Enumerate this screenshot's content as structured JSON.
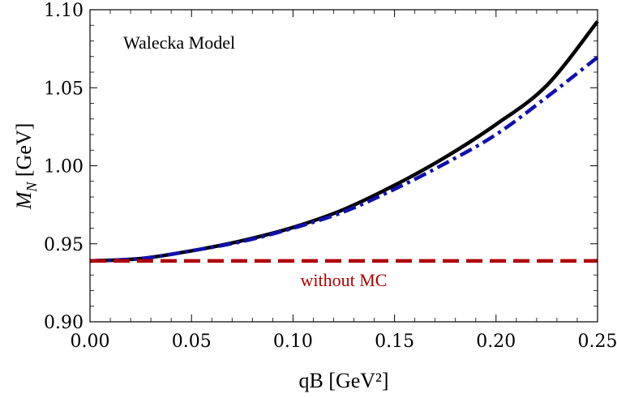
{
  "chart_data": {
    "type": "line",
    "title": "",
    "xlabel": "qB [GeV²]",
    "ylabel_main": "M",
    "ylabel_sub": "N",
    "ylabel_unit": " [GeV]",
    "xlim": [
      0,
      0.25
    ],
    "ylim": [
      0.9,
      1.1
    ],
    "x_ticks": [
      "0.00",
      "0.05",
      "0.10",
      "0.15",
      "0.20",
      "0.25"
    ],
    "y_ticks": [
      "0.90",
      "0.95",
      "1.00",
      "1.05",
      "1.10"
    ],
    "grid": false,
    "annotations": {
      "model": "Walecka Model",
      "without_mc": "without MC"
    },
    "colors": {
      "solid": "#000000",
      "dashdot": "#1010b0",
      "dashed": "#b00000"
    },
    "series": [
      {
        "style": "solid",
        "x": [
          0.0,
          0.025,
          0.05,
          0.075,
          0.1,
          0.125,
          0.15,
          0.175,
          0.2,
          0.225,
          0.25
        ],
        "y": [
          0.939,
          0.9405,
          0.9455,
          0.952,
          0.9605,
          0.972,
          0.9875,
          1.0055,
          1.0265,
          1.0515,
          1.0925
        ]
      },
      {
        "style": "dashdot",
        "x": [
          0.0,
          0.025,
          0.05,
          0.075,
          0.1,
          0.125,
          0.15,
          0.175,
          0.2,
          0.225,
          0.25
        ],
        "y": [
          0.939,
          0.9405,
          0.9455,
          0.9515,
          0.96,
          0.9705,
          0.985,
          1.0015,
          1.02,
          1.044,
          1.0695
        ]
      },
      {
        "style": "dashed",
        "x": [
          0.0,
          0.25
        ],
        "y": [
          0.939,
          0.939
        ]
      }
    ]
  }
}
